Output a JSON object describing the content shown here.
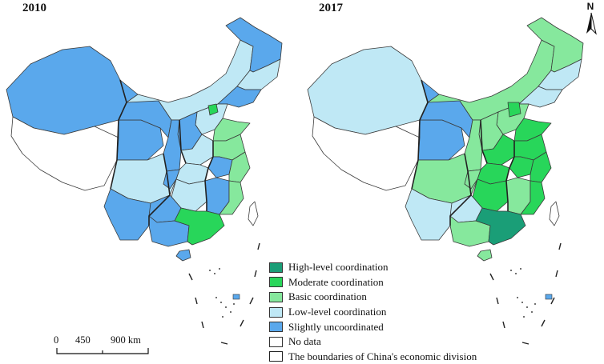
{
  "maps": [
    {
      "year": "2010"
    },
    {
      "year": "2017"
    }
  ],
  "north_arrow": {
    "label": "N"
  },
  "legend": [
    {
      "label": "High-level coordination",
      "color": "#1a9e77"
    },
    {
      "label": "Moderate coordination",
      "color": "#28d65a"
    },
    {
      "label": "Basic coordination",
      "color": "#86e89d"
    },
    {
      "label": "Low-level coordination",
      "color": "#bfe8f5"
    },
    {
      "label": "Slightly uncoordinated",
      "color": "#5aa8ec"
    },
    {
      "label": "No data",
      "color": "#ffffff"
    },
    {
      "label": "The boundaries of China's economic division",
      "color": "#ffffff"
    }
  ],
  "scale_bar": {
    "labels": [
      "0",
      "450",
      "900 km"
    ]
  },
  "colors": {
    "high": "#1a9e77",
    "moderate": "#28d65a",
    "basic": "#86e89d",
    "low": "#bfe8f5",
    "slight": "#5aa8ec",
    "nodata": "#ffffff"
  }
}
